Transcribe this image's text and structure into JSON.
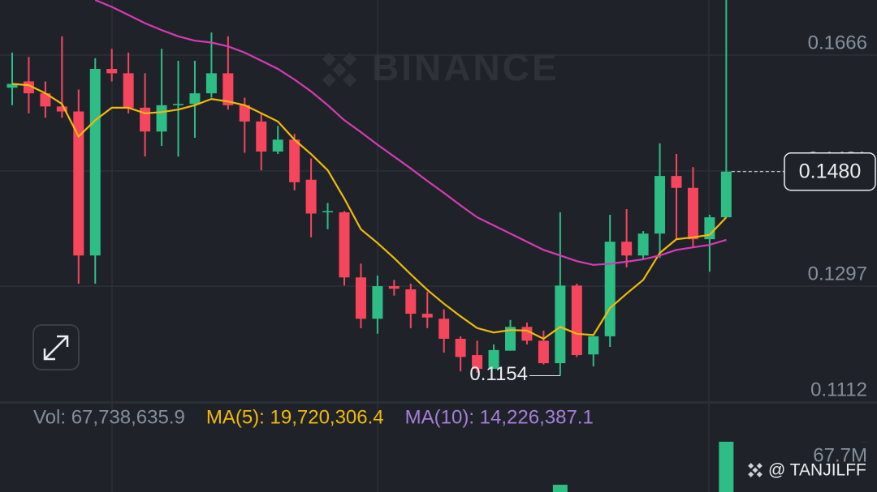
{
  "chart_data": [
    {
      "type": "candlestick",
      "watermark": "BINANCE",
      "up_color": "#2ebd85",
      "down_color": "#f6465d",
      "open": [
        0.1614,
        0.1624,
        0.1605,
        0.1584,
        0.1576,
        0.1346,
        0.1644,
        0.1637,
        0.1582,
        0.1544,
        0.1586,
        0.1588,
        0.1605,
        0.1637,
        0.1586,
        0.156,
        0.1512,
        0.1531,
        0.1467,
        0.1415,
        0.1415,
        0.1311,
        0.1245,
        0.1297,
        0.1292,
        0.1253,
        0.1245,
        0.1213,
        0.1187,
        0.1165,
        0.1194,
        0.1232,
        0.121,
        0.1174,
        0.1298,
        0.1188,
        0.1217,
        0.1368,
        0.1346,
        0.1381,
        0.1473,
        0.1454,
        0.1372,
        0.1407
      ],
      "high": [
        0.167,
        0.1663,
        0.1624,
        0.1696,
        0.1611,
        0.1661,
        0.1676,
        0.167,
        0.1637,
        0.1676,
        0.1657,
        0.1657,
        0.1702,
        0.1696,
        0.1598,
        0.1573,
        0.1553,
        0.154,
        0.1501,
        0.143,
        0.1417,
        0.1333,
        0.1314,
        0.1307,
        0.1301,
        0.1288,
        0.126,
        0.1217,
        0.121,
        0.1204,
        0.1243,
        0.1239,
        0.1226,
        0.1415,
        0.1301,
        0.1217,
        0.1411,
        0.142,
        0.1385,
        0.1525,
        0.1508,
        0.1487,
        0.1411,
        0.1754
      ],
      "low": [
        0.1586,
        0.1573,
        0.1566,
        0.1566,
        0.1301,
        0.1301,
        0.1624,
        0.1573,
        0.1504,
        0.1521,
        0.1504,
        0.1534,
        0.1598,
        0.1579,
        0.151,
        0.1482,
        0.1508,
        0.145,
        0.1375,
        0.1388,
        0.1298,
        0.123,
        0.1221,
        0.1282,
        0.123,
        0.123,
        0.1191,
        0.1161,
        0.1159,
        0.1165,
        0.1194,
        0.1204,
        0.1172,
        0.1154,
        0.1184,
        0.1169,
        0.12,
        0.1327,
        0.134,
        0.1342,
        0.1372,
        0.1359,
        0.132,
        0.1407
      ],
      "close": [
        0.162,
        0.1605,
        0.1584,
        0.1576,
        0.1346,
        0.1644,
        0.1637,
        0.1582,
        0.1544,
        0.1586,
        0.1588,
        0.1605,
        0.1637,
        0.1586,
        0.156,
        0.1512,
        0.1531,
        0.1463,
        0.1413,
        0.1417,
        0.1311,
        0.1245,
        0.1297,
        0.1293,
        0.1253,
        0.1247,
        0.1213,
        0.1184,
        0.1165,
        0.1195,
        0.1232,
        0.121,
        0.1174,
        0.1298,
        0.1187,
        0.1217,
        0.1368,
        0.1346,
        0.1381,
        0.1473,
        0.1454,
        0.1372,
        0.1407,
        0.148
      ],
      "series": [
        {
          "color": "#f0b90b",
          "values": [
            0.162,
            0.1618,
            0.1605,
            0.1588,
            0.1536,
            0.1562,
            0.1582,
            0.1582,
            0.1573,
            0.1575,
            0.1579,
            0.1586,
            0.1596,
            0.1592,
            0.1586,
            0.1573,
            0.156,
            0.1531,
            0.1508,
            0.1482,
            0.1437,
            0.1388,
            0.1366,
            0.1342,
            0.1316,
            0.1291,
            0.1269,
            0.1249,
            0.123,
            0.1223,
            0.1227,
            0.1226,
            0.1213,
            0.1232,
            0.1221,
            0.1219,
            0.1262,
            0.1285,
            0.1307,
            0.135,
            0.1372,
            0.1375,
            0.1379,
            0.1407
          ]
        },
        {
          "color": "#d63ab5",
          "values": [
            null,
            null,
            null,
            null,
            null,
            0.1754,
            0.1743,
            0.173,
            0.1717,
            0.1706,
            0.1696,
            0.1689,
            0.1686,
            0.168,
            0.167,
            0.1657,
            0.1644,
            0.1627,
            0.1608,
            0.1586,
            0.1562,
            0.1543,
            0.1523,
            0.1504,
            0.1485,
            0.1465,
            0.1446,
            0.1426,
            0.1407,
            0.1394,
            0.1381,
            0.1368,
            0.1355,
            0.1346,
            0.1337,
            0.1331,
            0.1333,
            0.1336,
            0.134,
            0.1346,
            0.1355,
            0.1359,
            0.1363,
            0.1371
          ]
        }
      ],
      "ylim": [
        0.1112,
        0.1754
      ],
      "yticks": [
        0.1666,
        0.1481,
        0.1297,
        0.1112
      ],
      "grid": true,
      "last_price": {
        "value": 0.148,
        "label": "0.1480"
      },
      "low_label": {
        "value": 0.1154,
        "label": "0.1154"
      }
    },
    {
      "type": "bar",
      "legend": [
        {
          "label": "Vol: 67,738,635.9",
          "color": "#848e9c"
        },
        {
          "label": "MA(5): 19,720,306.4",
          "color": "#f0b90b"
        },
        {
          "label": "MA(10): 14,226,387.1",
          "color": "#a77ed9"
        }
      ],
      "values": [
        null,
        null,
        null,
        null,
        null,
        null,
        null,
        null,
        null,
        null,
        null,
        null,
        null,
        null,
        null,
        null,
        null,
        null,
        null,
        null,
        null,
        null,
        null,
        null,
        null,
        null,
        null,
        null,
        null,
        null,
        null,
        null,
        null,
        9800000,
        null,
        null,
        null,
        null,
        null,
        null,
        null,
        null,
        null,
        67738635.9
      ],
      "ylim": [
        0,
        84100000
      ],
      "yticks": [
        {
          "value": 67738635.9,
          "label": "67.7M"
        }
      ]
    }
  ],
  "credit": "@ TANJILFF"
}
